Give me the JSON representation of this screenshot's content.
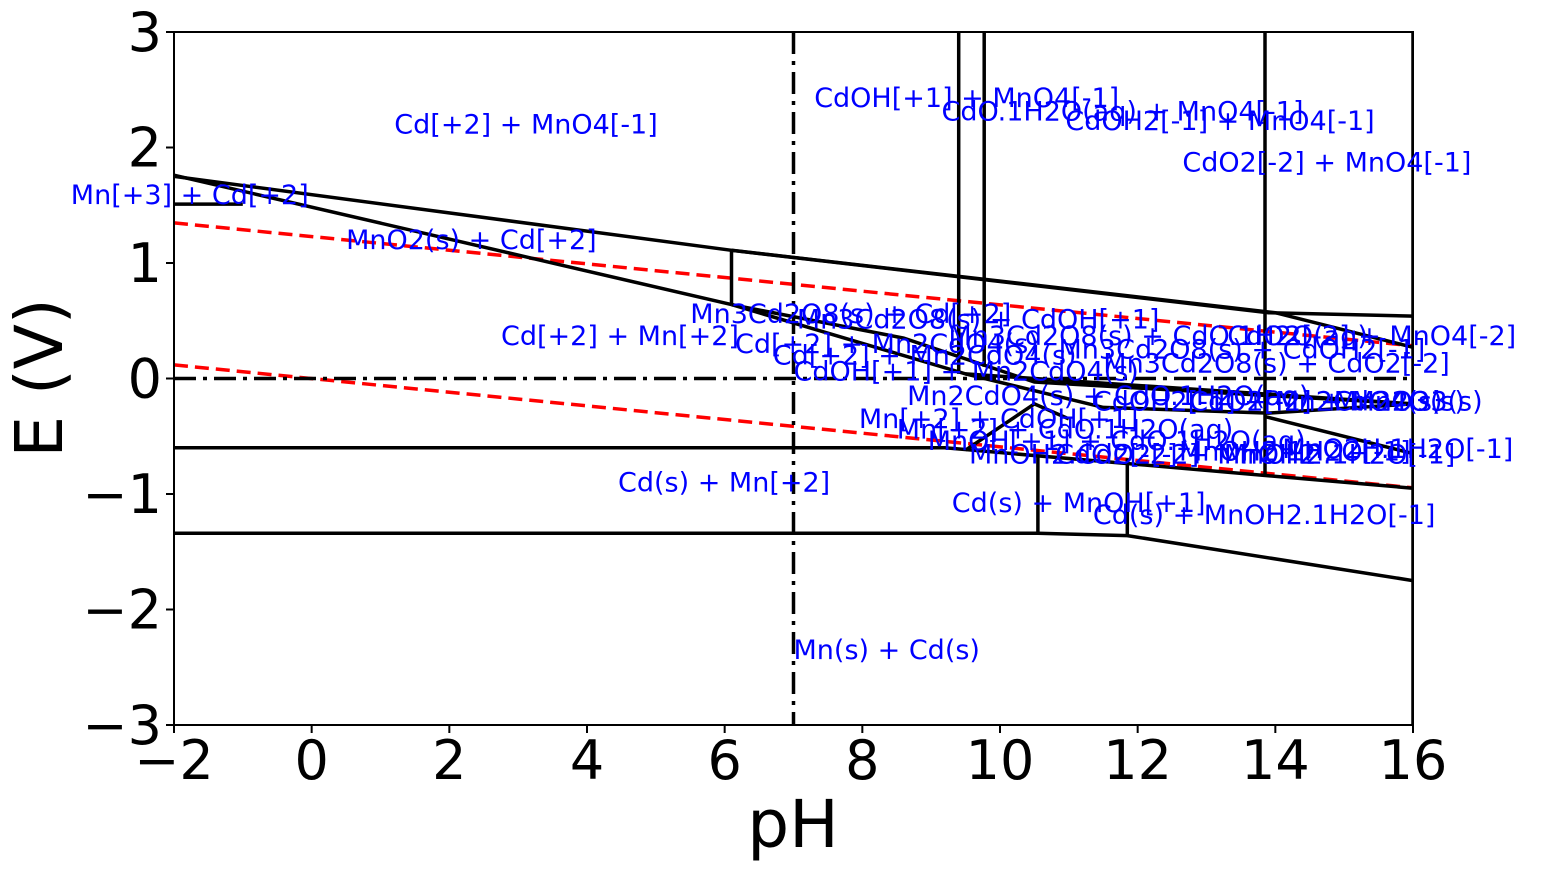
{
  "chart_data": {
    "type": "line",
    "title": "",
    "xlabel": "pH",
    "ylabel": "E (V)",
    "xlim": [
      -2,
      16
    ],
    "ylim": [
      -3,
      3
    ],
    "xticks": [
      -2,
      0,
      2,
      4,
      6,
      8,
      10,
      12,
      14,
      16
    ],
    "yticks": [
      -3,
      -2,
      -1,
      0,
      1,
      2,
      3
    ],
    "xtick_labels": [
      "−2",
      "0",
      "2",
      "4",
      "6",
      "8",
      "10",
      "12",
      "14",
      "16"
    ],
    "ytick_labels": [
      "−3",
      "−2",
      "−1",
      "0",
      "1",
      "2",
      "3"
    ],
    "grid": false,
    "colors": {
      "boundary": "#000000",
      "water": "#ff0000",
      "label": "#0000ff",
      "reference": "#000000"
    },
    "reference_lines": [
      {
        "name": "pH 7",
        "orientation": "vertical",
        "value": 7
      },
      {
        "name": "E 0",
        "orientation": "horizontal",
        "value": 0
      }
    ],
    "water_lines": [
      {
        "name": "O2/H2O",
        "x": [
          -2,
          16
        ],
        "y": [
          1.347,
          0.283
        ]
      },
      {
        "name": "H2O/H2",
        "x": [
          -2,
          16
        ],
        "y": [
          0.118,
          -0.946
        ]
      }
    ],
    "boundaries": [
      {
        "x": [
          -2,
          6.1,
          13.9,
          16
        ],
        "y": [
          1.75,
          1.11,
          0.57,
          0.54
        ]
      },
      {
        "x": [
          6.1,
          14.0,
          16
        ],
        "y": [
          1.11,
          0.57,
          0.27
        ]
      },
      {
        "x": [
          -2,
          6.1
        ],
        "y": [
          1.76,
          0.64
        ]
      },
      {
        "x": [
          -2,
          -1.0
        ],
        "y": [
          1.51,
          1.51
        ]
      },
      {
        "x": [
          6.1,
          6.1
        ],
        "y": [
          1.11,
          0.64
        ]
      },
      {
        "x": [
          6.1,
          9.5,
          16
        ],
        "y": [
          0.64,
          0.04,
          -0.22
        ]
      },
      {
        "x": [
          6.1,
          8.6,
          10.5,
          16
        ],
        "y": [
          0.64,
          0.35,
          -0.03,
          -0.22
        ]
      },
      {
        "x": [
          9.4,
          9.4
        ],
        "y": [
          3,
          0.04
        ]
      },
      {
        "x": [
          9.77,
          9.77
        ],
        "y": [
          3,
          0.1
        ]
      },
      {
        "x": [
          13.85,
          13.85
        ],
        "y": [
          3,
          -0.83
        ]
      },
      {
        "x": [
          9.5,
          11.5,
          13.9,
          16
        ],
        "y": [
          0.04,
          -0.25,
          -0.3,
          -0.22
        ]
      },
      {
        "x": [
          9.5,
          10.5,
          11.0
        ],
        "y": [
          -0.62,
          -0.22,
          -0.35
        ]
      },
      {
        "x": [
          -2,
          9.2,
          16
        ],
        "y": [
          -0.6,
          -0.6,
          -0.95
        ]
      },
      {
        "x": [
          13.85,
          16
        ],
        "y": [
          -0.33,
          -0.65
        ]
      },
      {
        "x": [
          -2,
          10.55,
          11.85,
          16
        ],
        "y": [
          -1.34,
          -1.34,
          -1.36,
          -1.75
        ]
      },
      {
        "x": [
          10.55,
          10.55
        ],
        "y": [
          -0.66,
          -1.34
        ]
      },
      {
        "x": [
          11.85,
          11.85
        ],
        "y": [
          -0.69,
          -1.36
        ]
      },
      {
        "x": [
          16,
          16
        ],
        "y": [
          3,
          -3
        ]
      }
    ],
    "region_labels": [
      {
        "text": "Cd[+2] + MnO4[-1]",
        "x": 1.2,
        "y": 2.2
      },
      {
        "text": "CdOH[+1] + MnO4[-1]",
        "x": 7.3,
        "y": 2.43
      },
      {
        "text": "CdO.1H2O(aq) + MnO4[-1]",
        "x": 9.15,
        "y": 2.31
      },
      {
        "text": "CdOH2[-1] + MnO4[-1]",
        "x": 10.95,
        "y": 2.23
      },
      {
        "text": "CdO2[-2] + MnO4[-1]",
        "x": 12.65,
        "y": 1.87
      },
      {
        "text": "Mn[+3] + Cd[+2]",
        "x": -3.5,
        "y": 1.59
      },
      {
        "text": "MnO2(s) + Cd[+2]",
        "x": 0.5,
        "y": 1.2
      },
      {
        "text": "Mn3Cd2O8(s) + Cd[+2]",
        "x": 5.5,
        "y": 0.56
      },
      {
        "text": "Mn3Cd2O8(s) + CdOH[+1]",
        "x": 7.05,
        "y": 0.51
      },
      {
        "text": "Cd[+2] + Mn[+2]",
        "x": 2.75,
        "y": 0.37
      },
      {
        "text": "Cd[+2] + Mn2CdO4(s)",
        "x": 6.15,
        "y": 0.3
      },
      {
        "text": "Cd[+2] + Mn2CdO4(s)",
        "x": 6.7,
        "y": 0.2
      },
      {
        "text": "CdOH[+1] + Mn2CdO4(s)",
        "x": 7.0,
        "y": 0.06
      },
      {
        "text": "Mn3Cd2O8(s) + CdO.1H2O(aq)",
        "x": 9.25,
        "y": 0.37
      },
      {
        "text": "Mn3Cd2O8(s) + CdOH2[-1]",
        "x": 10.85,
        "y": 0.25
      },
      {
        "text": "Mn3Cd2O8(s) + CdO2[-2]",
        "x": 11.5,
        "y": 0.13
      },
      {
        "text": "CdO2[-2] + MnO4[-2]",
        "x": 13.3,
        "y": 0.37
      },
      {
        "text": "Mn2CdO4(s) + CdO.1H2O(aq)",
        "x": 8.65,
        "y": -0.15
      },
      {
        "text": "CdOH2[-1] + Mn2CdO4(s)",
        "x": 11.35,
        "y": -0.2
      },
      {
        "text": "CdO2[-2] + Mn2O3(s)",
        "x": 12.75,
        "y": -0.2
      },
      {
        "text": "Mn2O3(s)",
        "x": 14.85,
        "y": -0.2
      },
      {
        "text": "Mn[+2] + CdOH[+1]",
        "x": 7.95,
        "y": -0.35
      },
      {
        "text": "Mn[+2] + CdO.1H2O(aq)",
        "x": 8.5,
        "y": -0.44
      },
      {
        "text": "MnOH[+1] + CdO.1H2O(aq)",
        "x": 8.95,
        "y": -0.54
      },
      {
        "text": "MnOH2.1H2O[-1]",
        "x": 12.6,
        "y": -0.63
      },
      {
        "text": "MnOH2.1H2O[-1]",
        "x": 13.25,
        "y": -0.66
      },
      {
        "text": "MnO2H.1H2O[-1]",
        "x": 14.1,
        "y": -0.61
      },
      {
        "text": "MnOH2.CdO2[-2]",
        "x": 9.55,
        "y": -0.66
      },
      {
        "text": "CdO2[-2] + MnOH2",
        "x": 10.8,
        "y": -0.66
      },
      {
        "text": "Cd(s) + Mn[+2]",
        "x": 4.45,
        "y": -0.9
      },
      {
        "text": "Cd(s) + MnOH[+1]",
        "x": 9.3,
        "y": -1.08
      },
      {
        "text": "Cd(s) + MnOH2.1H2O[-1]",
        "x": 11.35,
        "y": -1.18
      },
      {
        "text": "Mn(s) + Cd(s)",
        "x": 7.0,
        "y": -2.35
      }
    ]
  }
}
